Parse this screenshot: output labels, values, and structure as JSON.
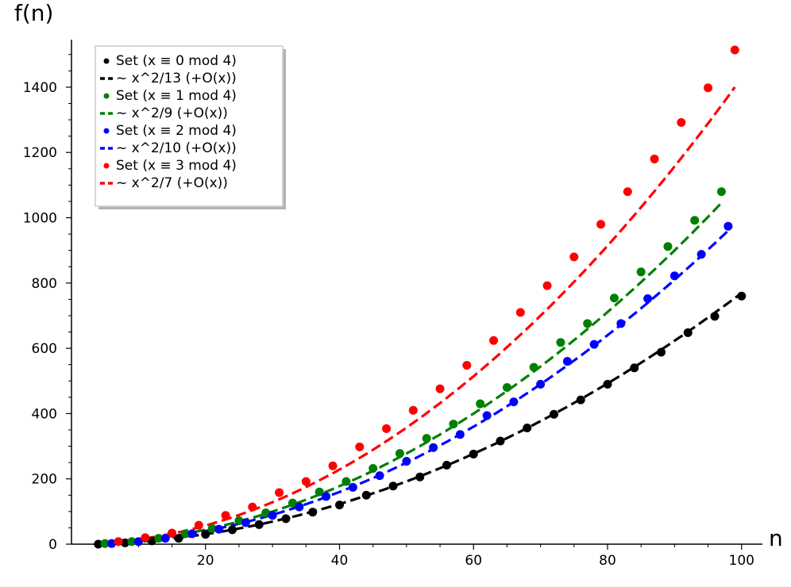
{
  "chart_data": {
    "type": "scatter",
    "xlabel": "n",
    "ylabel": "f(n)",
    "xlim": [
      4,
      100
    ],
    "ylim": [
      0,
      1500
    ],
    "xticks": [
      20,
      40,
      60,
      80,
      100
    ],
    "yticks": [
      0,
      200,
      400,
      600,
      800,
      1000,
      1200,
      1400
    ],
    "grid": false,
    "legend_position": "top-left",
    "series": [
      {
        "name": "Set (x ≡ 0 mod 4)",
        "kind": "points",
        "color": "#000000",
        "x": [
          4,
          8,
          12,
          16,
          20,
          24,
          28,
          32,
          36,
          40,
          44,
          48,
          52,
          56,
          60,
          64,
          68,
          72,
          76,
          80,
          84,
          88,
          92,
          96,
          100
        ],
        "y": [
          0,
          4,
          10,
          18,
          30,
          44,
          60,
          78,
          98,
          120,
          150,
          178,
          206,
          242,
          276,
          316,
          356,
          398,
          442,
          490,
          540,
          588,
          648,
          698,
          760
        ]
      },
      {
        "name": "~ x^2/13 (+O(x))",
        "kind": "line",
        "color": "#000000",
        "coef": 13,
        "x_range": [
          4,
          100
        ]
      },
      {
        "name": "Set (x ≡ 1 mod 4)",
        "kind": "points",
        "color": "#008000",
        "x": [
          5,
          9,
          13,
          17,
          21,
          25,
          29,
          33,
          37,
          41,
          45,
          49,
          53,
          57,
          61,
          65,
          69,
          73,
          77,
          81,
          85,
          89,
          93,
          97
        ],
        "y": [
          2,
          8,
          18,
          32,
          48,
          72,
          96,
          126,
          160,
          192,
          232,
          278,
          324,
          368,
          430,
          480,
          542,
          618,
          676,
          754,
          834,
          912,
          992,
          1080
        ]
      },
      {
        "name": "~ x^2/9 (+O(x))",
        "kind": "line",
        "color": "#008000",
        "coef": 9,
        "x_range": [
          5,
          97
        ]
      },
      {
        "name": "Set (x ≡ 2 mod 4)",
        "kind": "points",
        "color": "#0000ff",
        "x": [
          6,
          10,
          14,
          18,
          22,
          26,
          30,
          34,
          38,
          42,
          46,
          50,
          54,
          58,
          62,
          66,
          70,
          74,
          78,
          82,
          86,
          90,
          94,
          98
        ],
        "y": [
          2,
          8,
          18,
          32,
          46,
          66,
          88,
          114,
          146,
          174,
          210,
          254,
          296,
          336,
          394,
          436,
          490,
          560,
          612,
          676,
          752,
          822,
          888,
          974
        ]
      },
      {
        "name": "~ x^2/10 (+O(x))",
        "kind": "line",
        "color": "#0000ff",
        "coef": 10,
        "x_range": [
          6,
          98
        ]
      },
      {
        "name": "Set (x ≡ 3 mod 4)",
        "kind": "points",
        "color": "#ff0000",
        "x": [
          7,
          11,
          15,
          19,
          23,
          27,
          31,
          35,
          39,
          43,
          47,
          51,
          55,
          59,
          63,
          67,
          71,
          75,
          79,
          83,
          87,
          91,
          95,
          99
        ],
        "y": [
          8,
          20,
          34,
          58,
          88,
          114,
          158,
          192,
          240,
          298,
          354,
          410,
          476,
          548,
          624,
          710,
          792,
          880,
          980,
          1080,
          1180,
          1292,
          1398,
          1514
        ]
      },
      {
        "name": "~ x^2/7 (+O(x))",
        "kind": "line",
        "color": "#ff0000",
        "coef": 7,
        "x_range": [
          7,
          99
        ]
      }
    ]
  }
}
